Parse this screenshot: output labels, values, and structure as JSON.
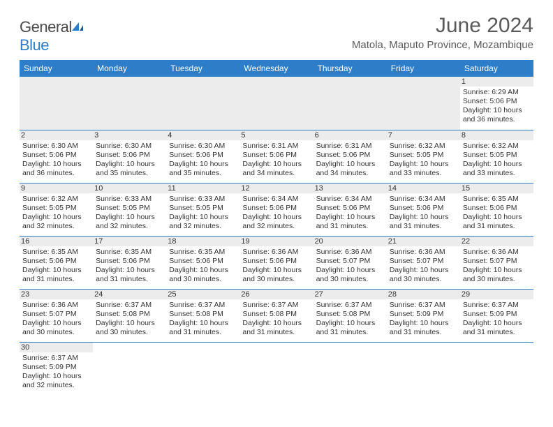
{
  "brand": {
    "general": "General",
    "blue": "Blue"
  },
  "title": "June 2024",
  "location": "Matola, Maputo Province, Mozambique",
  "dayHeaders": [
    "Sunday",
    "Monday",
    "Tuesday",
    "Wednesday",
    "Thursday",
    "Friday",
    "Saturday"
  ],
  "colors": {
    "headerBg": "#2d7dc8",
    "headerText": "#ffffff",
    "stripe": "#ececec",
    "cellBorder": "#2d7dc8",
    "text": "#333333",
    "title": "#5a5a5a"
  },
  "fonts": {
    "title_pt": 30,
    "location_pt": 15,
    "header_pt": 12,
    "daynum_pt": 11,
    "body_pt": 10.5
  },
  "layout": {
    "leadingBlanks": 6,
    "totalDays": 30,
    "cols": 7
  },
  "days": {
    "1": {
      "sunrise": "6:29 AM",
      "sunset": "5:06 PM",
      "dl_h": 10,
      "dl_m": 36
    },
    "2": {
      "sunrise": "6:30 AM",
      "sunset": "5:06 PM",
      "dl_h": 10,
      "dl_m": 36
    },
    "3": {
      "sunrise": "6:30 AM",
      "sunset": "5:06 PM",
      "dl_h": 10,
      "dl_m": 35
    },
    "4": {
      "sunrise": "6:30 AM",
      "sunset": "5:06 PM",
      "dl_h": 10,
      "dl_m": 35
    },
    "5": {
      "sunrise": "6:31 AM",
      "sunset": "5:06 PM",
      "dl_h": 10,
      "dl_m": 34
    },
    "6": {
      "sunrise": "6:31 AM",
      "sunset": "5:06 PM",
      "dl_h": 10,
      "dl_m": 34
    },
    "7": {
      "sunrise": "6:32 AM",
      "sunset": "5:05 PM",
      "dl_h": 10,
      "dl_m": 33
    },
    "8": {
      "sunrise": "6:32 AM",
      "sunset": "5:05 PM",
      "dl_h": 10,
      "dl_m": 33
    },
    "9": {
      "sunrise": "6:32 AM",
      "sunset": "5:05 PM",
      "dl_h": 10,
      "dl_m": 32
    },
    "10": {
      "sunrise": "6:33 AM",
      "sunset": "5:05 PM",
      "dl_h": 10,
      "dl_m": 32
    },
    "11": {
      "sunrise": "6:33 AM",
      "sunset": "5:05 PM",
      "dl_h": 10,
      "dl_m": 32
    },
    "12": {
      "sunrise": "6:34 AM",
      "sunset": "5:06 PM",
      "dl_h": 10,
      "dl_m": 32
    },
    "13": {
      "sunrise": "6:34 AM",
      "sunset": "5:06 PM",
      "dl_h": 10,
      "dl_m": 31
    },
    "14": {
      "sunrise": "6:34 AM",
      "sunset": "5:06 PM",
      "dl_h": 10,
      "dl_m": 31
    },
    "15": {
      "sunrise": "6:35 AM",
      "sunset": "5:06 PM",
      "dl_h": 10,
      "dl_m": 31
    },
    "16": {
      "sunrise": "6:35 AM",
      "sunset": "5:06 PM",
      "dl_h": 10,
      "dl_m": 31
    },
    "17": {
      "sunrise": "6:35 AM",
      "sunset": "5:06 PM",
      "dl_h": 10,
      "dl_m": 31
    },
    "18": {
      "sunrise": "6:35 AM",
      "sunset": "5:06 PM",
      "dl_h": 10,
      "dl_m": 30
    },
    "19": {
      "sunrise": "6:36 AM",
      "sunset": "5:06 PM",
      "dl_h": 10,
      "dl_m": 30
    },
    "20": {
      "sunrise": "6:36 AM",
      "sunset": "5:07 PM",
      "dl_h": 10,
      "dl_m": 30
    },
    "21": {
      "sunrise": "6:36 AM",
      "sunset": "5:07 PM",
      "dl_h": 10,
      "dl_m": 30
    },
    "22": {
      "sunrise": "6:36 AM",
      "sunset": "5:07 PM",
      "dl_h": 10,
      "dl_m": 30
    },
    "23": {
      "sunrise": "6:36 AM",
      "sunset": "5:07 PM",
      "dl_h": 10,
      "dl_m": 30
    },
    "24": {
      "sunrise": "6:37 AM",
      "sunset": "5:08 PM",
      "dl_h": 10,
      "dl_m": 30
    },
    "25": {
      "sunrise": "6:37 AM",
      "sunset": "5:08 PM",
      "dl_h": 10,
      "dl_m": 31
    },
    "26": {
      "sunrise": "6:37 AM",
      "sunset": "5:08 PM",
      "dl_h": 10,
      "dl_m": 31
    },
    "27": {
      "sunrise": "6:37 AM",
      "sunset": "5:08 PM",
      "dl_h": 10,
      "dl_m": 31
    },
    "28": {
      "sunrise": "6:37 AM",
      "sunset": "5:09 PM",
      "dl_h": 10,
      "dl_m": 31
    },
    "29": {
      "sunrise": "6:37 AM",
      "sunset": "5:09 PM",
      "dl_h": 10,
      "dl_m": 31
    },
    "30": {
      "sunrise": "6:37 AM",
      "sunset": "5:09 PM",
      "dl_h": 10,
      "dl_m": 32
    }
  },
  "labels": {
    "sunrise": "Sunrise:",
    "sunset": "Sunset:",
    "daylight": "Daylight:",
    "hours": "hours",
    "and": "and",
    "minutes": "minutes."
  }
}
